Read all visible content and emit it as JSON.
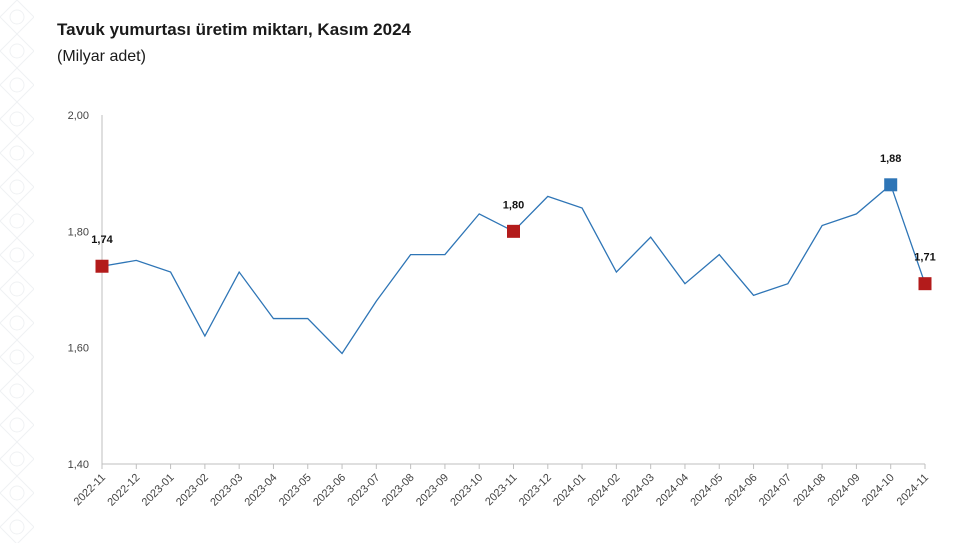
{
  "header": {
    "title": "Tavuk yumurtası üretim miktarı, Kasım 2024",
    "subtitle": "(Milyar adet)"
  },
  "colors": {
    "line": "#2e75b6",
    "highlight_red": "#b31b1b",
    "highlight_blue": "#2e75b6",
    "axis": "#bfbfbf",
    "grid": "#d9d9d9"
  },
  "chart_data": {
    "type": "line",
    "title": "Tavuk yumurtası üretim miktarı, Kasım 2024",
    "subtitle": "(Milyar adet)",
    "xlabel": "",
    "ylabel": "",
    "ylim": [
      1.4,
      2.0
    ],
    "yticks": [
      "1,40",
      "1,60",
      "1,80",
      "2,00"
    ],
    "grid": false,
    "categories": [
      "2022-11",
      "2022-12",
      "2023-01",
      "2023-02",
      "2023-03",
      "2023-04",
      "2023-05",
      "2023-06",
      "2023-07",
      "2023-08",
      "2023-09",
      "2023-10",
      "2023-11",
      "2023-12",
      "2024-01",
      "2024-02",
      "2024-03",
      "2024-04",
      "2024-05",
      "2024-06",
      "2024-07",
      "2024-08",
      "2024-09",
      "2024-10",
      "2024-11"
    ],
    "series": [
      {
        "values": [
          1.74,
          1.75,
          1.73,
          1.62,
          1.73,
          1.65,
          1.65,
          1.59,
          1.68,
          1.76,
          1.76,
          1.83,
          1.8,
          1.86,
          1.84,
          1.73,
          1.79,
          1.71,
          1.76,
          1.69,
          1.71,
          1.81,
          1.83,
          1.88,
          1.71
        ]
      }
    ],
    "highlighted_points": [
      {
        "index": 0,
        "label": "1,74",
        "color": "#b31b1b"
      },
      {
        "index": 12,
        "label": "1,80",
        "color": "#b31b1b"
      },
      {
        "index": 23,
        "label": "1,88",
        "color": "#2e75b6"
      },
      {
        "index": 24,
        "label": "1,71",
        "color": "#b31b1b"
      }
    ]
  }
}
